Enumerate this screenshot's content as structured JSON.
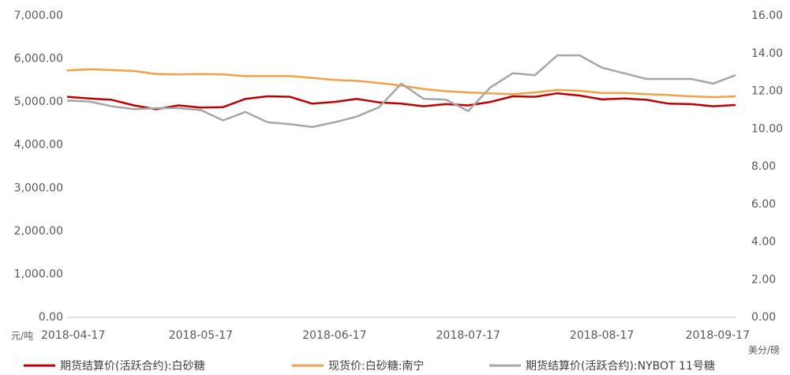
{
  "chart_data": {
    "type": "line",
    "y_label": "元/吨",
    "y2_label": "美分/磅",
    "categories": [
      "2018-04-17",
      null,
      null,
      null,
      null,
      null,
      "2018-05-17",
      null,
      null,
      null,
      null,
      null,
      "2018-06-17",
      null,
      null,
      null,
      null,
      null,
      "2018-07-17",
      null,
      null,
      null,
      null,
      null,
      "2018-08-17",
      null,
      null,
      null,
      null,
      null,
      "2018-09-17"
    ],
    "series": [
      {
        "name": "期货结算价(活跃合约):白砂糖",
        "color": "#c00000",
        "values": [
          5120,
          5080,
          5050,
          4920,
          4830,
          4920,
          4870,
          4880,
          5070,
          5130,
          5120,
          4960,
          5000,
          5070,
          4990,
          4960,
          4900,
          4950,
          4920,
          5000,
          5130,
          5120,
          5200,
          5150,
          5060,
          5080,
          5050,
          4960,
          4950,
          4900,
          4930
        ]
      },
      {
        "name": "现货价:白砂糖:南宁",
        "color": "#f4a044",
        "values": [
          5730,
          5760,
          5740,
          5720,
          5650,
          5640,
          5650,
          5640,
          5600,
          5600,
          5600,
          5560,
          5510,
          5490,
          5440,
          5380,
          5300,
          5250,
          5220,
          5200,
          5180,
          5220,
          5280,
          5260,
          5210,
          5210,
          5180,
          5160,
          5130,
          5110,
          5130
        ]
      },
      {
        "name": "期货结算价(活跃合约):NYBOT 11号糖",
        "color": "#a6a6a6",
        "axis": "y2",
        "values": [
          11.5,
          11.45,
          11.2,
          11.05,
          11.1,
          11.1,
          11.0,
          10.45,
          10.9,
          10.35,
          10.25,
          10.1,
          10.35,
          10.65,
          11.15,
          12.4,
          11.6,
          11.55,
          10.95,
          12.2,
          12.95,
          12.85,
          13.9,
          13.9,
          13.25,
          12.95,
          12.65,
          12.65,
          12.65,
          12.4,
          12.85
        ]
      }
    ],
    "ylim": [
      0,
      7000
    ],
    "yticks": [
      {
        "value": 0,
        "label": "0.00"
      },
      {
        "value": 1000,
        "label": "1,000.00"
      },
      {
        "value": 2000,
        "label": "2,000.00"
      },
      {
        "value": 3000,
        "label": "3,000.00"
      },
      {
        "value": 4000,
        "label": "4,000.00"
      },
      {
        "value": 5000,
        "label": "5,000.00"
      },
      {
        "value": 6000,
        "label": "6,000.00"
      },
      {
        "value": 7000,
        "label": "7,000.00"
      }
    ],
    "y2lim": [
      0,
      16
    ],
    "y2ticks": [
      {
        "value": 0,
        "label": "0.00"
      },
      {
        "value": 2,
        "label": "2.00"
      },
      {
        "value": 4,
        "label": "4.00"
      },
      {
        "value": 6,
        "label": "6.00"
      },
      {
        "value": 8,
        "label": "8.00"
      },
      {
        "value": 10,
        "label": "10.00"
      },
      {
        "value": 12,
        "label": "12.00"
      },
      {
        "value": 14,
        "label": "14.00"
      },
      {
        "value": 16,
        "label": "16.00"
      }
    ]
  }
}
